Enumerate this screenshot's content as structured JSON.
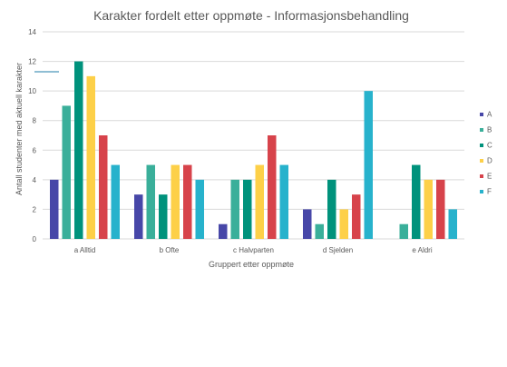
{
  "chart_data": {
    "type": "bar",
    "title": "Karakter fordelt etter oppmøte - Informasjonsbehandling",
    "xlabel": "Gruppert etter oppmøte",
    "ylabel": "Antall studenter med aktuell karakter",
    "ylim": [
      0,
      14
    ],
    "yticks": [
      0,
      2,
      4,
      6,
      8,
      10,
      12,
      14
    ],
    "grid": true,
    "legend_position": "right",
    "categories": [
      "a Alltid",
      "b Ofte",
      "c Halvparten",
      "d Sjelden",
      "e Aldri"
    ],
    "series": [
      {
        "name": "A",
        "color": "#4747a8",
        "values": [
          4,
          3,
          1,
          2,
          0
        ]
      },
      {
        "name": "B",
        "color": "#3aaf9a",
        "values": [
          9,
          5,
          4,
          1,
          1
        ]
      },
      {
        "name": "C",
        "color": "#00927c",
        "values": [
          12,
          3,
          4,
          4,
          5
        ]
      },
      {
        "name": "D",
        "color": "#fdd048",
        "values": [
          11,
          5,
          5,
          2,
          4
        ]
      },
      {
        "name": "E",
        "color": "#d7434b",
        "values": [
          7,
          5,
          7,
          3,
          4
        ]
      },
      {
        "name": "F",
        "color": "#27b2cc",
        "values": [
          5,
          4,
          5,
          10,
          2
        ]
      }
    ]
  }
}
